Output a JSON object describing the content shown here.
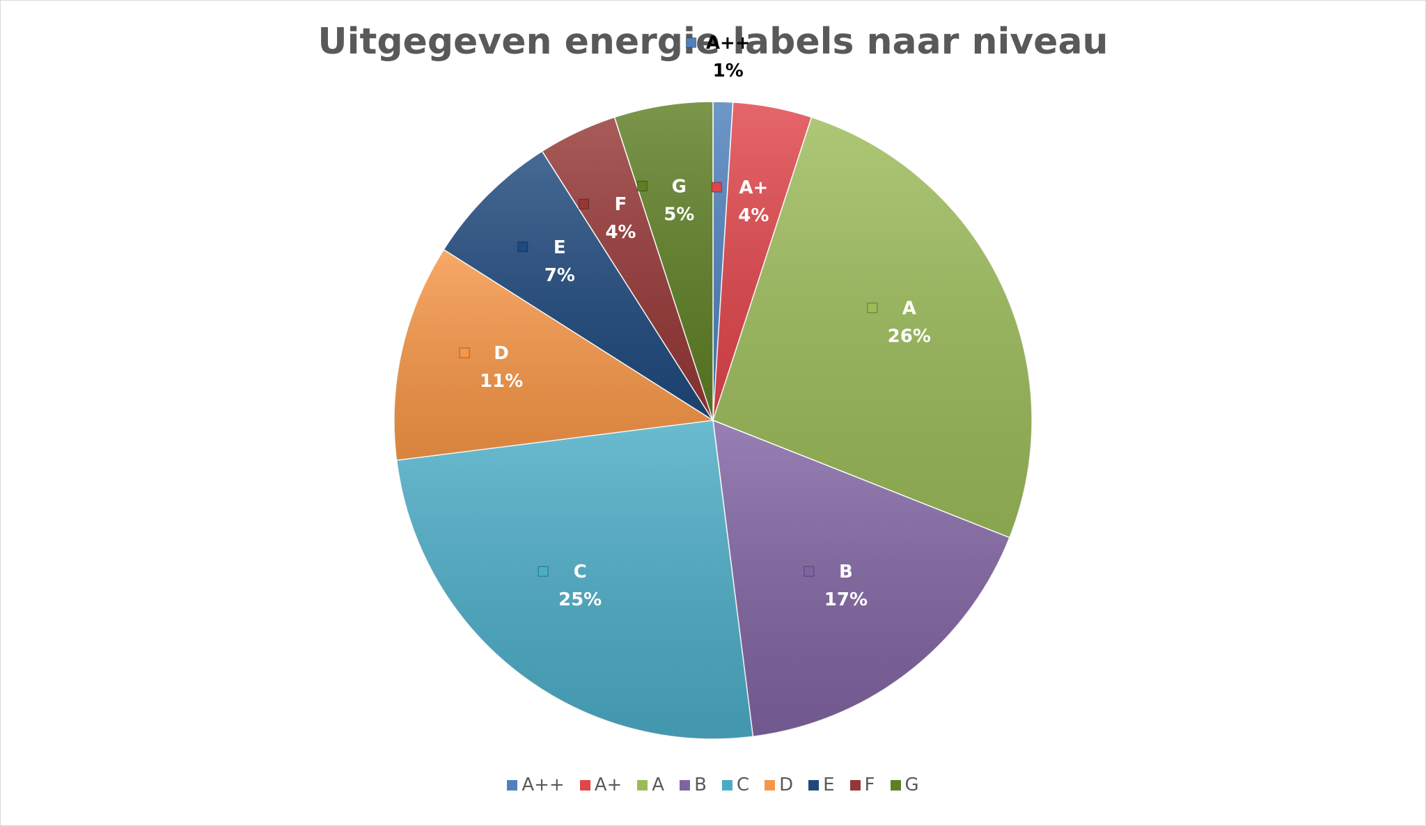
{
  "chart_data": {
    "type": "pie",
    "title": "Uitgegeven energie labels naar niveau",
    "categories": [
      "A++",
      "A+",
      "A",
      "B",
      "C",
      "D",
      "E",
      "F",
      "G"
    ],
    "values": [
      1,
      4,
      26,
      17,
      25,
      11,
      7,
      4,
      5
    ],
    "value_labels": [
      "1%",
      "4%",
      "26%",
      "17%",
      "25%",
      "11%",
      "7%",
      "4%",
      "5%"
    ],
    "colors": [
      "#4f81bd",
      "#e0454a",
      "#9bbb59",
      "#8064a2",
      "#4bacc6",
      "#f79646",
      "#1f497d",
      "#953735",
      "#5e7f24"
    ],
    "label_colors": [
      "#000000",
      "#ffffff",
      "#ffffff",
      "#ffffff",
      "#ffffff",
      "#ffffff",
      "#ffffff",
      "#ffffff",
      "#ffffff"
    ],
    "legend": {
      "position": "bottom",
      "entries": [
        "A++",
        "A+",
        "A",
        "B",
        "C",
        "D",
        "E",
        "F",
        "G"
      ]
    }
  }
}
